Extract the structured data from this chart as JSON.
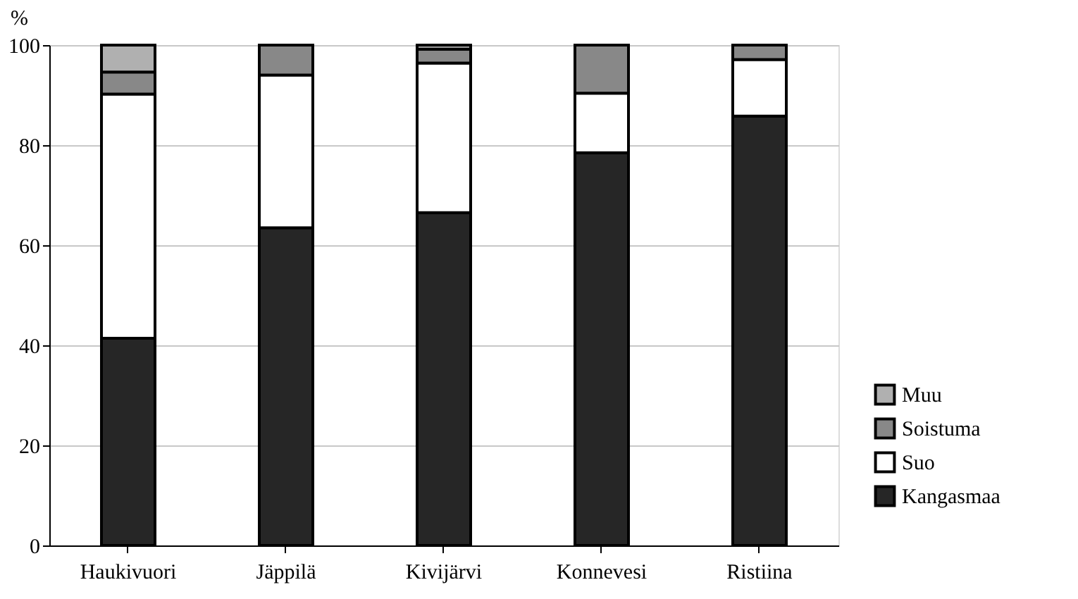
{
  "chart_data": {
    "type": "bar",
    "stacked": true,
    "ylabel": "%",
    "categories": [
      "Haukivuori",
      "Jäppilä",
      "Kivijärvi",
      "Konnevesi",
      "Ristiina"
    ],
    "series": [
      {
        "name": "Kangasmaa",
        "color": "#262626",
        "values": [
          41.4,
          63.5,
          66.5,
          78.5,
          85.8
        ]
      },
      {
        "name": "Suo",
        "color": "#ffffff",
        "values": [
          48.8,
          30.5,
          29.9,
          11.9,
          11.3
        ]
      },
      {
        "name": "Soistuma",
        "color": "#888888",
        "values": [
          4.4,
          6.0,
          2.8,
          9.6,
          2.9
        ]
      },
      {
        "name": "Muu",
        "color": "#b0b0b0",
        "values": [
          5.4,
          0,
          0.8,
          0,
          0
        ]
      }
    ],
    "ylim": [
      0,
      100
    ],
    "yticks": [
      0,
      20,
      40,
      60,
      80,
      100
    ],
    "grid": "y",
    "legend": "right"
  }
}
